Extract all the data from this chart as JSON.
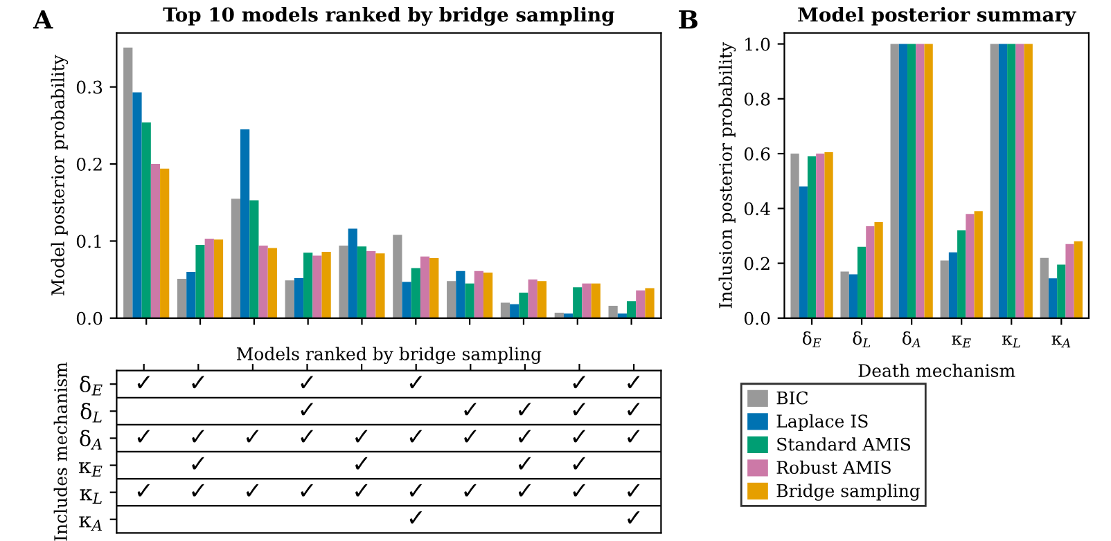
{
  "chart_data": [
    {
      "type": "bar",
      "title": "Top 10 models ranked by bridge sampling",
      "xlabel": "Models ranked by bridge sampling",
      "ylabel": "Model posterior probability",
      "annotations": [
        "A"
      ],
      "categories": [
        null,
        null,
        null,
        null,
        null,
        null,
        null,
        null,
        null,
        null
      ],
      "series": [
        {
          "color": "#999999",
          "values": [
            0.351,
            0.051,
            0.155,
            0.049,
            0.094,
            0.108,
            0.048,
            0.02,
            0.007,
            0.016
          ]
        },
        {
          "color": "#0072b2",
          "values": [
            0.293,
            0.06,
            0.245,
            0.052,
            0.116,
            0.047,
            0.061,
            0.018,
            0.006,
            0.006
          ]
        },
        {
          "color": "#009e73",
          "values": [
            0.254,
            0.095,
            0.153,
            0.085,
            0.093,
            0.065,
            0.045,
            0.033,
            0.04,
            0.022
          ]
        },
        {
          "color": "#cc79a7",
          "values": [
            0.2,
            0.103,
            0.094,
            0.081,
            0.087,
            0.08,
            0.061,
            0.05,
            0.045,
            0.036
          ]
        },
        {
          "color": "#e69f00",
          "values": [
            0.194,
            0.102,
            0.091,
            0.086,
            0.084,
            0.078,
            0.059,
            0.048,
            0.045,
            0.039
          ]
        }
      ],
      "ylim": [
        0,
        0.37
      ],
      "yticks": [
        {
          "value": 0,
          "label": "0.0"
        },
        {
          "value": 0.1,
          "label": "0.1"
        },
        {
          "value": 0.2,
          "label": "0.2"
        },
        {
          "value": 0.3,
          "label": "0.3"
        }
      ],
      "legend": false
    },
    {
      "type": "heatmap",
      "ylabel": "Includes mechanism",
      "categories": [
        null,
        null,
        null,
        null,
        null,
        null,
        null,
        null,
        null,
        null
      ],
      "y_categories": [
        "δ$_{E}$",
        "δ$_{L}$",
        "δ$_{A}$",
        "κ$_{E}$",
        "κ$_{L}$",
        "κ$_{A}$"
      ],
      "cells": [
        [
          "✓",
          "✓",
          null,
          "✓",
          null,
          "✓",
          null,
          null,
          "✓",
          "✓"
        ],
        [
          null,
          null,
          null,
          "✓",
          null,
          null,
          "✓",
          "✓",
          "✓",
          "✓"
        ],
        [
          "✓",
          "✓",
          "✓",
          "✓",
          "✓",
          "✓",
          "✓",
          "✓",
          "✓",
          "✓"
        ],
        [
          null,
          "✓",
          null,
          null,
          "✓",
          null,
          null,
          "✓",
          "✓",
          null
        ],
        [
          "✓",
          "✓",
          "✓",
          "✓",
          "✓",
          "✓",
          "✓",
          "✓",
          "✓",
          "✓"
        ],
        [
          null,
          null,
          null,
          null,
          null,
          "✓",
          null,
          null,
          null,
          "✓"
        ]
      ]
    },
    {
      "type": "bar",
      "title": "Model posterior summary",
      "xlabel": "Death mechanism",
      "ylabel": "Inclusion posterior probability",
      "annotations": [
        "B"
      ],
      "categories": [
        "δ$_{E}$",
        "δ$_{L}$",
        "δ$_{A}$",
        "κ$_{E}$",
        "κ$_{L}$",
        "κ$_{A}$"
      ],
      "series": [
        {
          "name": "BIC",
          "color": "#999999",
          "values": [
            0.6,
            0.17,
            1.0,
            0.21,
            1.0,
            0.22
          ]
        },
        {
          "name": "Laplace IS",
          "color": "#0072b2",
          "values": [
            0.48,
            0.16,
            1.0,
            0.24,
            1.0,
            0.145
          ]
        },
        {
          "name": "Standard AMIS",
          "color": "#009e73",
          "values": [
            0.59,
            0.26,
            1.0,
            0.32,
            1.0,
            0.195
          ]
        },
        {
          "name": "Robust AMIS",
          "color": "#cc79a7",
          "values": [
            0.6,
            0.335,
            1.0,
            0.38,
            1.0,
            0.27
          ]
        },
        {
          "name": "Bridge sampling",
          "color": "#e69f00",
          "values": [
            0.605,
            0.35,
            1.0,
            0.39,
            1.0,
            0.28
          ]
        }
      ],
      "ylim": [
        0,
        1.04
      ],
      "yticks": [
        {
          "value": 0,
          "label": "0.0"
        },
        {
          "value": 0.2,
          "label": "0.2"
        },
        {
          "value": 0.4,
          "label": "0.4"
        },
        {
          "value": 0.6,
          "label": "0.6"
        },
        {
          "value": 0.8,
          "label": "0.8"
        },
        {
          "value": 1.0,
          "label": "1.0"
        }
      ],
      "legend": "bottom"
    }
  ]
}
